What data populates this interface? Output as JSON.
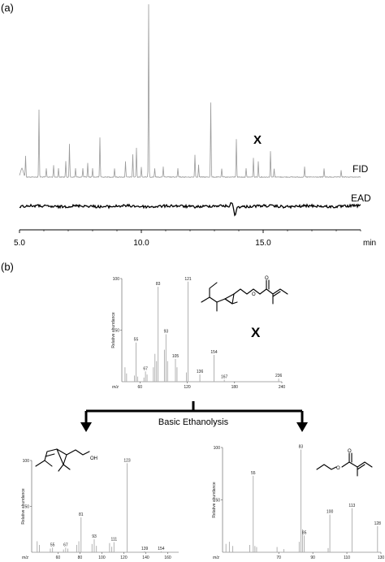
{
  "panel_a_label": "(a)",
  "panel_b_label": "(b)",
  "arrow_label": "Basic Ethanolysis",
  "chart_data": [
    {
      "type": "line",
      "panel": "(a)",
      "compound_label": "X",
      "trace_labels": {
        "fid": "FID",
        "ead": "EAD"
      },
      "x_unit": "min",
      "x_ticks": [
        5.0,
        10.0,
        15.0
      ],
      "x_tick_labels": [
        "5.0",
        "10.0",
        "15.0"
      ],
      "xlim": [
        5.0,
        19.0
      ],
      "fid_peaks": [
        {
          "x": 5.25,
          "h": 0.12
        },
        {
          "x": 5.8,
          "h": 0.39
        },
        {
          "x": 6.1,
          "h": 0.05
        },
        {
          "x": 6.4,
          "h": 0.07
        },
        {
          "x": 6.6,
          "h": 0.05
        },
        {
          "x": 6.9,
          "h": 0.09
        },
        {
          "x": 7.05,
          "h": 0.19
        },
        {
          "x": 7.3,
          "h": 0.05
        },
        {
          "x": 7.6,
          "h": 0.05
        },
        {
          "x": 7.8,
          "h": 0.08
        },
        {
          "x": 8.0,
          "h": 0.05
        },
        {
          "x": 8.3,
          "h": 0.23
        },
        {
          "x": 8.9,
          "h": 0.05
        },
        {
          "x": 9.35,
          "h": 0.09
        },
        {
          "x": 9.65,
          "h": 0.13
        },
        {
          "x": 9.8,
          "h": 0.17
        },
        {
          "x": 10.0,
          "h": 0.06
        },
        {
          "x": 10.3,
          "h": 1.0
        },
        {
          "x": 10.55,
          "h": 0.05
        },
        {
          "x": 10.9,
          "h": 0.06
        },
        {
          "x": 11.5,
          "h": 0.05
        },
        {
          "x": 12.2,
          "h": 0.13
        },
        {
          "x": 12.35,
          "h": 0.07
        },
        {
          "x": 12.85,
          "h": 0.43
        },
        {
          "x": 13.3,
          "h": 0.05
        },
        {
          "x": 13.9,
          "h": 0.22
        },
        {
          "x": 14.3,
          "h": 0.05
        },
        {
          "x": 14.6,
          "h": 0.11
        },
        {
          "x": 14.8,
          "h": 0.09
        },
        {
          "x": 15.3,
          "h": 0.15
        },
        {
          "x": 15.45,
          "h": 0.05
        },
        {
          "x": 16.7,
          "h": 0.06
        },
        {
          "x": 17.5,
          "h": 0.05
        },
        {
          "x": 18.2,
          "h": 0.04
        }
      ],
      "ead_response": {
        "x": 13.85,
        "depth": 1.0
      }
    },
    {
      "type": "bar",
      "panel": "(b)",
      "title": "X",
      "ylabel": "Relative abundance",
      "xlabel": "m/z",
      "y_ticks": [
        50,
        100
      ],
      "x_ticks": [
        60,
        120,
        180,
        240
      ],
      "xlim": [
        37,
        240
      ],
      "ylim": [
        0,
        100
      ],
      "labeled_peaks": [
        {
          "x": 55,
          "y": 38,
          "label": "55"
        },
        {
          "x": 67,
          "y": 10,
          "label": "67"
        },
        {
          "x": 83,
          "y": 92,
          "label": "83"
        },
        {
          "x": 93,
          "y": 46,
          "label": "93"
        },
        {
          "x": 105,
          "y": 22,
          "label": "105"
        },
        {
          "x": 121,
          "y": 97,
          "label": "121"
        },
        {
          "x": 136,
          "y": 7,
          "label": "136"
        },
        {
          "x": 154,
          "y": 26,
          "label": "154"
        },
        {
          "x": 167,
          "y": 2,
          "label": "167"
        },
        {
          "x": 236,
          "y": 3,
          "label": "236"
        }
      ],
      "minor_peaks": [
        {
          "x": 41,
          "y": 14
        },
        {
          "x": 43,
          "y": 8
        },
        {
          "x": 53,
          "y": 6
        },
        {
          "x": 57,
          "y": 5
        },
        {
          "x": 65,
          "y": 4
        },
        {
          "x": 69,
          "y": 7
        },
        {
          "x": 77,
          "y": 14
        },
        {
          "x": 79,
          "y": 27
        },
        {
          "x": 81,
          "y": 20
        },
        {
          "x": 91,
          "y": 31
        },
        {
          "x": 95,
          "y": 20
        },
        {
          "x": 107,
          "y": 14
        },
        {
          "x": 119,
          "y": 9
        }
      ]
    },
    {
      "type": "bar",
      "panel": "(b) left",
      "ylabel": "Relative abundance",
      "xlabel": "m/z",
      "y_ticks": [
        50,
        100
      ],
      "x_ticks": [
        60,
        80,
        100,
        120,
        140,
        160
      ],
      "xlim": [
        36,
        170
      ],
      "ylim": [
        0,
        100
      ],
      "structure_tag": "OH",
      "labeled_peaks": [
        {
          "x": 55,
          "y": 5,
          "label": "55"
        },
        {
          "x": 67,
          "y": 5,
          "label": "67"
        },
        {
          "x": 81,
          "y": 38,
          "label": "81"
        },
        {
          "x": 93,
          "y": 14,
          "label": "93"
        },
        {
          "x": 111,
          "y": 11,
          "label": "111"
        },
        {
          "x": 123,
          "y": 97,
          "label": "123"
        },
        {
          "x": 139,
          "y": 1,
          "label": "139"
        },
        {
          "x": 154,
          "y": 1,
          "label": "154"
        }
      ],
      "minor_peaks": [
        {
          "x": 41,
          "y": 12
        },
        {
          "x": 43,
          "y": 8
        },
        {
          "x": 53,
          "y": 4
        },
        {
          "x": 65,
          "y": 3
        },
        {
          "x": 69,
          "y": 4
        },
        {
          "x": 77,
          "y": 8
        },
        {
          "x": 79,
          "y": 12
        },
        {
          "x": 91,
          "y": 9
        },
        {
          "x": 95,
          "y": 7
        },
        {
          "x": 107,
          "y": 10
        },
        {
          "x": 109,
          "y": 6
        }
      ]
    },
    {
      "type": "bar",
      "panel": "(b) right",
      "ylabel": "Relative abundance",
      "xlabel": "m/z",
      "y_ticks": [
        50,
        100
      ],
      "x_ticks": [
        70,
        90,
        110,
        130
      ],
      "xlim": [
        37,
        130
      ],
      "ylim": [
        0,
        100
      ],
      "labeled_peaks": [
        {
          "x": 55,
          "y": 73,
          "label": "55"
        },
        {
          "x": 83,
          "y": 98,
          "label": "83"
        },
        {
          "x": 85,
          "y": 16,
          "label": "85"
        },
        {
          "x": 100,
          "y": 36,
          "label": "100"
        },
        {
          "x": 113,
          "y": 42,
          "label": "113"
        },
        {
          "x": 128,
          "y": 25,
          "label": "128"
        }
      ],
      "minor_peaks": [
        {
          "x": 39,
          "y": 8
        },
        {
          "x": 41,
          "y": 10
        },
        {
          "x": 43,
          "y": 6
        },
        {
          "x": 53,
          "y": 7
        },
        {
          "x": 56,
          "y": 6
        },
        {
          "x": 57,
          "y": 5
        },
        {
          "x": 69,
          "y": 5
        },
        {
          "x": 73,
          "y": 3
        },
        {
          "x": 82,
          "y": 10
        },
        {
          "x": 84,
          "y": 22
        },
        {
          "x": 99,
          "y": 4
        }
      ]
    }
  ]
}
